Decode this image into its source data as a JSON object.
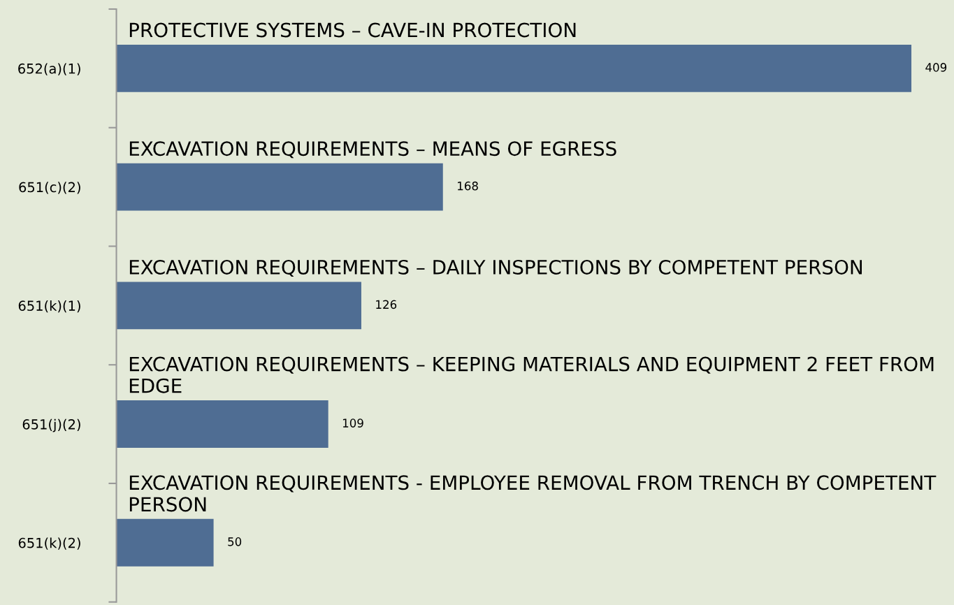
{
  "chart_data": {
    "type": "bar",
    "orientation": "horizontal",
    "categories": [
      "652(a)(1)",
      "651(c)(2)",
      "651(k)(1)",
      "651(j)(2)",
      "651(k)(2)"
    ],
    "values": [
      409,
      168,
      126,
      109,
      50
    ],
    "color": "#4f6d93",
    "data_labels": true,
    "grid": false,
    "annotations": [
      "PROTECTIVE SYSTEMS – CAVE-IN PROTECTION",
      "EXCAVATION REQUIREMENTS – MEANS OF EGRESS",
      "EXCAVATION REQUIREMENTS – DAILY INSPECTIONS BY COMPETENT PERSON",
      "EXCAVATION REQUIREMENTS – KEEPING MATERIALS AND EQUIPMENT 2 FEET FROM EDGE",
      "EXCAVATION REQUIREMENTS - EMPLOYEE REMOVAL FROM TRENCH BY COMPETENT PERSON"
    ]
  }
}
